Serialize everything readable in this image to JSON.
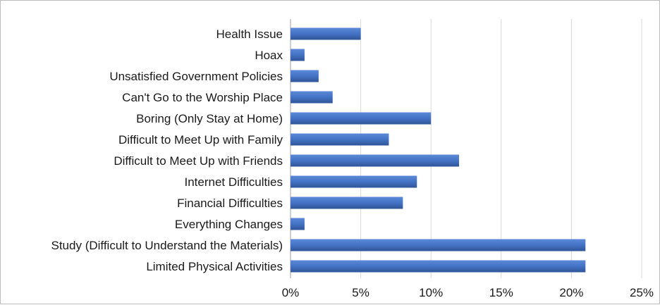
{
  "chart_data": {
    "type": "bar",
    "orientation": "horizontal",
    "categories": [
      "Health Issue",
      "Hoax",
      "Unsatisfied Government Policies",
      "Can't Go to the Worship Place",
      "Boring (Only Stay at Home)",
      "Difficult to Meet Up with Family",
      "Difficult to Meet Up with Friends",
      "Internet Difficulties",
      "Financial Difficulties",
      "Everything Changes",
      "Study (Difficult to Understand the Materials)",
      "Limited Physical Activities"
    ],
    "values": [
      5,
      1,
      2,
      3,
      10,
      7,
      12,
      9,
      8,
      1,
      21,
      21
    ],
    "xlim": [
      0,
      25
    ],
    "x_ticks": [
      {
        "value": 0,
        "label": "0%"
      },
      {
        "value": 5,
        "label": "5%"
      },
      {
        "value": 10,
        "label": "10%"
      },
      {
        "value": 15,
        "label": "15%"
      },
      {
        "value": 20,
        "label": "20%"
      },
      {
        "value": 25,
        "label": "25%"
      }
    ],
    "title": "",
    "xlabel": "",
    "ylabel": "",
    "grid": true,
    "legend": "none",
    "bar_color": "#4472c4"
  }
}
